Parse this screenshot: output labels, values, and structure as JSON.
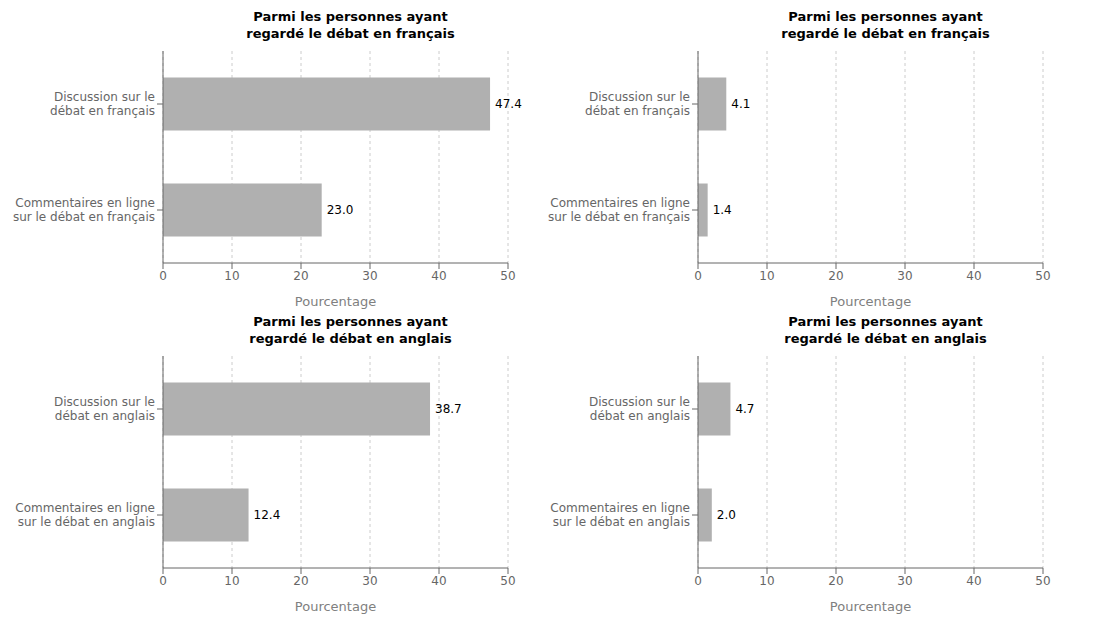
{
  "chart_data": [
    {
      "type": "bar",
      "title": "Parmi les personnes ayant\nregardé le débat en français",
      "orientation": "horizontal",
      "categories": [
        "Discussion sur le\ndébat en français",
        "Commentaires en ligne\nsur le débat en français"
      ],
      "values": [
        47.4,
        23.0
      ],
      "value_labels": [
        "47.4",
        "23.0"
      ],
      "data_labels": true,
      "color": "#b0b0b0",
      "xlabel": "Pourcentage",
      "xlim": [
        0,
        50
      ],
      "xticks": [
        0,
        10,
        20,
        30,
        40,
        50
      ],
      "grid": true
    },
    {
      "type": "bar",
      "title": "Parmi les personnes ayant\nregardé le débat en français",
      "orientation": "horizontal",
      "categories": [
        "Discussion sur le\ndébat en français",
        "Commentaires en ligne\nsur le débat en français"
      ],
      "values": [
        4.1,
        1.4
      ],
      "value_labels": [
        "4.1",
        "1.4"
      ],
      "data_labels": true,
      "color": "#b0b0b0",
      "xlabel": "Pourcentage",
      "xlim": [
        0,
        50
      ],
      "xticks": [
        0,
        10,
        20,
        30,
        40,
        50
      ],
      "grid": true
    },
    {
      "type": "bar",
      "title": "Parmi les personnes ayant\nregardé le débat en anglais",
      "orientation": "horizontal",
      "categories": [
        "Discussion sur le\ndébat en anglais",
        "Commentaires en ligne\nsur le débat en anglais"
      ],
      "values": [
        38.7,
        12.4
      ],
      "value_labels": [
        "38.7",
        "12.4"
      ],
      "data_labels": true,
      "color": "#b0b0b0",
      "xlabel": "Pourcentage",
      "xlim": [
        0,
        50
      ],
      "xticks": [
        0,
        10,
        20,
        30,
        40,
        50
      ],
      "grid": true
    },
    {
      "type": "bar",
      "title": "Parmi les personnes ayant\nregardé le débat en anglais",
      "orientation": "horizontal",
      "categories": [
        "Discussion sur le\ndébat en anglais",
        "Commentaires en ligne\nsur le débat en anglais"
      ],
      "values": [
        4.7,
        2.0
      ],
      "value_labels": [
        "4.7",
        "2.0"
      ],
      "data_labels": true,
      "color": "#b0b0b0",
      "xlabel": "Pourcentage",
      "xlim": [
        0,
        50
      ],
      "xticks": [
        0,
        10,
        20,
        30,
        40,
        50
      ],
      "grid": true
    }
  ]
}
